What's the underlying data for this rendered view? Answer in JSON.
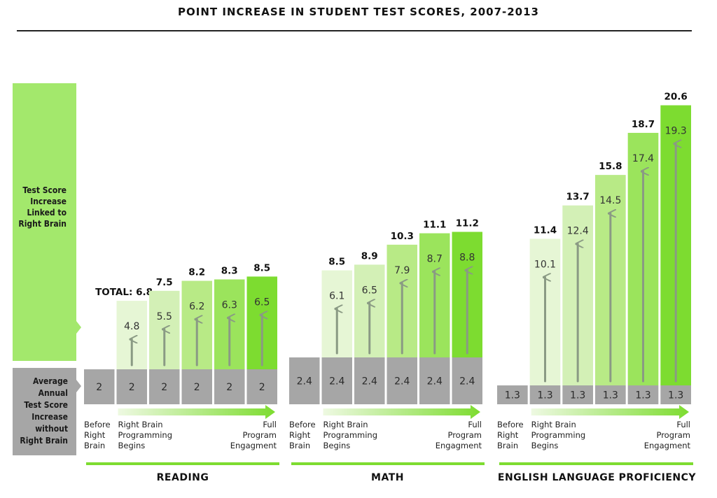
{
  "title": "POINT INCREASE IN STUDENT TEST SCORES, 2007-2013",
  "legend": {
    "linked_label_lines": [
      "Test Score",
      "Increase",
      "Linked to",
      "Right Brain"
    ],
    "baseline_label_lines": [
      "Average",
      "Annual",
      "Test Score",
      "Increase",
      "without",
      "Right Brain"
    ]
  },
  "stage_labels": {
    "before": [
      "Before",
      "Right",
      "Brain"
    ],
    "begins": [
      "Right Brain",
      "Programming",
      "Begins"
    ],
    "full": [
      "Full",
      "Program",
      "Engagment"
    ]
  },
  "total_prefix": "TOTAL:",
  "colors": {
    "baseline": "#a6a6a6",
    "bar_shades": [
      "#e6f6d5",
      "#d3f0b6",
      "#b8ea86",
      "#9be45c",
      "#7ddc30"
    ],
    "legend_green": "#a3e86c",
    "accent_line": "#7ddc30",
    "arrow": "#8a9a84"
  },
  "chart_data": {
    "type": "bar",
    "stacked": true,
    "title": "POINT INCREASE IN STUDENT TEST SCORES, 2007-2013",
    "series_roles": [
      "Average Annual Test Score Increase without Right Brain",
      "Test Score Increase Linked to Right Brain"
    ],
    "panels": [
      {
        "name": "READING",
        "baseline": [
          2,
          2,
          2,
          2,
          2,
          2
        ],
        "baseline_labels": [
          "2",
          "2",
          "2",
          "2",
          "2",
          "2"
        ],
        "increase": [
          null,
          4.8,
          5.5,
          6.2,
          6.3,
          6.5
        ],
        "increase_labels": [
          "",
          "4.8",
          "5.5",
          "6.2",
          "6.3",
          "6.5"
        ],
        "totals": [
          null,
          6.8,
          7.5,
          8.2,
          8.3,
          8.5
        ],
        "total_labels": [
          "",
          "6.8",
          "7.5",
          "8.2",
          "8.3",
          "8.5"
        ]
      },
      {
        "name": "MATH",
        "baseline": [
          2.4,
          2.4,
          2.4,
          2.4,
          2.4,
          2.4
        ],
        "baseline_labels": [
          "2.4",
          "2.4",
          "2.4",
          "2.4",
          "2.4",
          "2.4"
        ],
        "increase": [
          null,
          6.1,
          6.5,
          7.9,
          8.7,
          8.8
        ],
        "increase_labels": [
          "",
          "6.1",
          "6.5",
          "7.9",
          "8.7",
          "8.8"
        ],
        "totals": [
          null,
          8.5,
          8.9,
          10.3,
          11.1,
          11.2
        ],
        "total_labels": [
          "",
          "8.5",
          "8.9",
          "10.3",
          "11.1",
          "11.2"
        ]
      },
      {
        "name": "ENGLISH LANGUAGE PROFICIENCY",
        "baseline": [
          1.3,
          1.3,
          1.3,
          1.3,
          1.3,
          1.3
        ],
        "baseline_labels": [
          "1.3",
          "1.3",
          "1.3",
          "1.3",
          "1.3",
          "1.3"
        ],
        "increase": [
          null,
          10.1,
          12.4,
          14.5,
          17.4,
          19.3
        ],
        "increase_labels": [
          "",
          "10.1",
          "12.4",
          "14.5",
          "17.4",
          "19.3"
        ],
        "totals": [
          null,
          11.4,
          13.7,
          15.8,
          18.7,
          20.6
        ],
        "total_labels": [
          "",
          "11.4",
          "13.7",
          "15.8",
          "18.7",
          "20.6"
        ]
      }
    ]
  }
}
